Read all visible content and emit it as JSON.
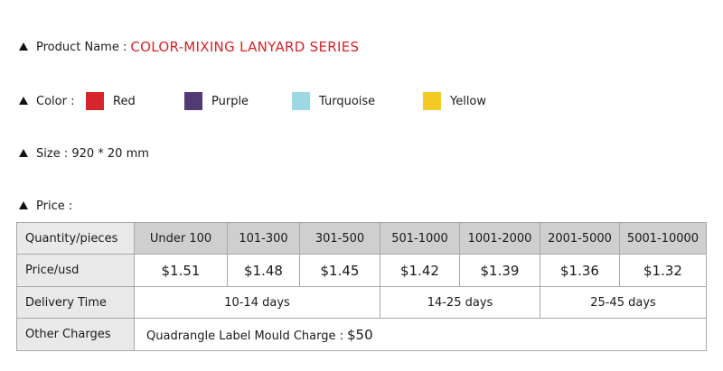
{
  "product": {
    "label": "Product Name :",
    "value": "COLOR-MIXING LANYARD SERIES"
  },
  "color": {
    "label": "Color :",
    "options": [
      {
        "name": "Red",
        "hex": "#d7262b"
      },
      {
        "name": "Purple",
        "hex": "#523a73"
      },
      {
        "name": "Turquoise",
        "hex": "#9ed9e3"
      },
      {
        "name": "Yellow",
        "hex": "#f5c923"
      }
    ]
  },
  "size": {
    "label": "Size : 920 * 20 mm"
  },
  "price": {
    "label": "Price :",
    "table": {
      "row_headers": [
        "Quantity/pieces",
        "Price/usd",
        "Delivery Time",
        "Other Charges"
      ],
      "quantities": [
        "Under 100",
        "101-300",
        "301-500",
        "501-1000",
        "1001-2000",
        "2001-5000",
        "5001-10000"
      ],
      "prices": [
        "$1.51",
        "$1.48",
        "$1.45",
        "$1.42",
        "$1.39",
        "$1.36",
        "$1.32"
      ],
      "delivery": [
        "10-14 days",
        "14-25 days",
        "25-45 days"
      ],
      "other_charges": {
        "text": "Quadrangle Label Mould Charge :",
        "amount": "$50"
      }
    }
  }
}
